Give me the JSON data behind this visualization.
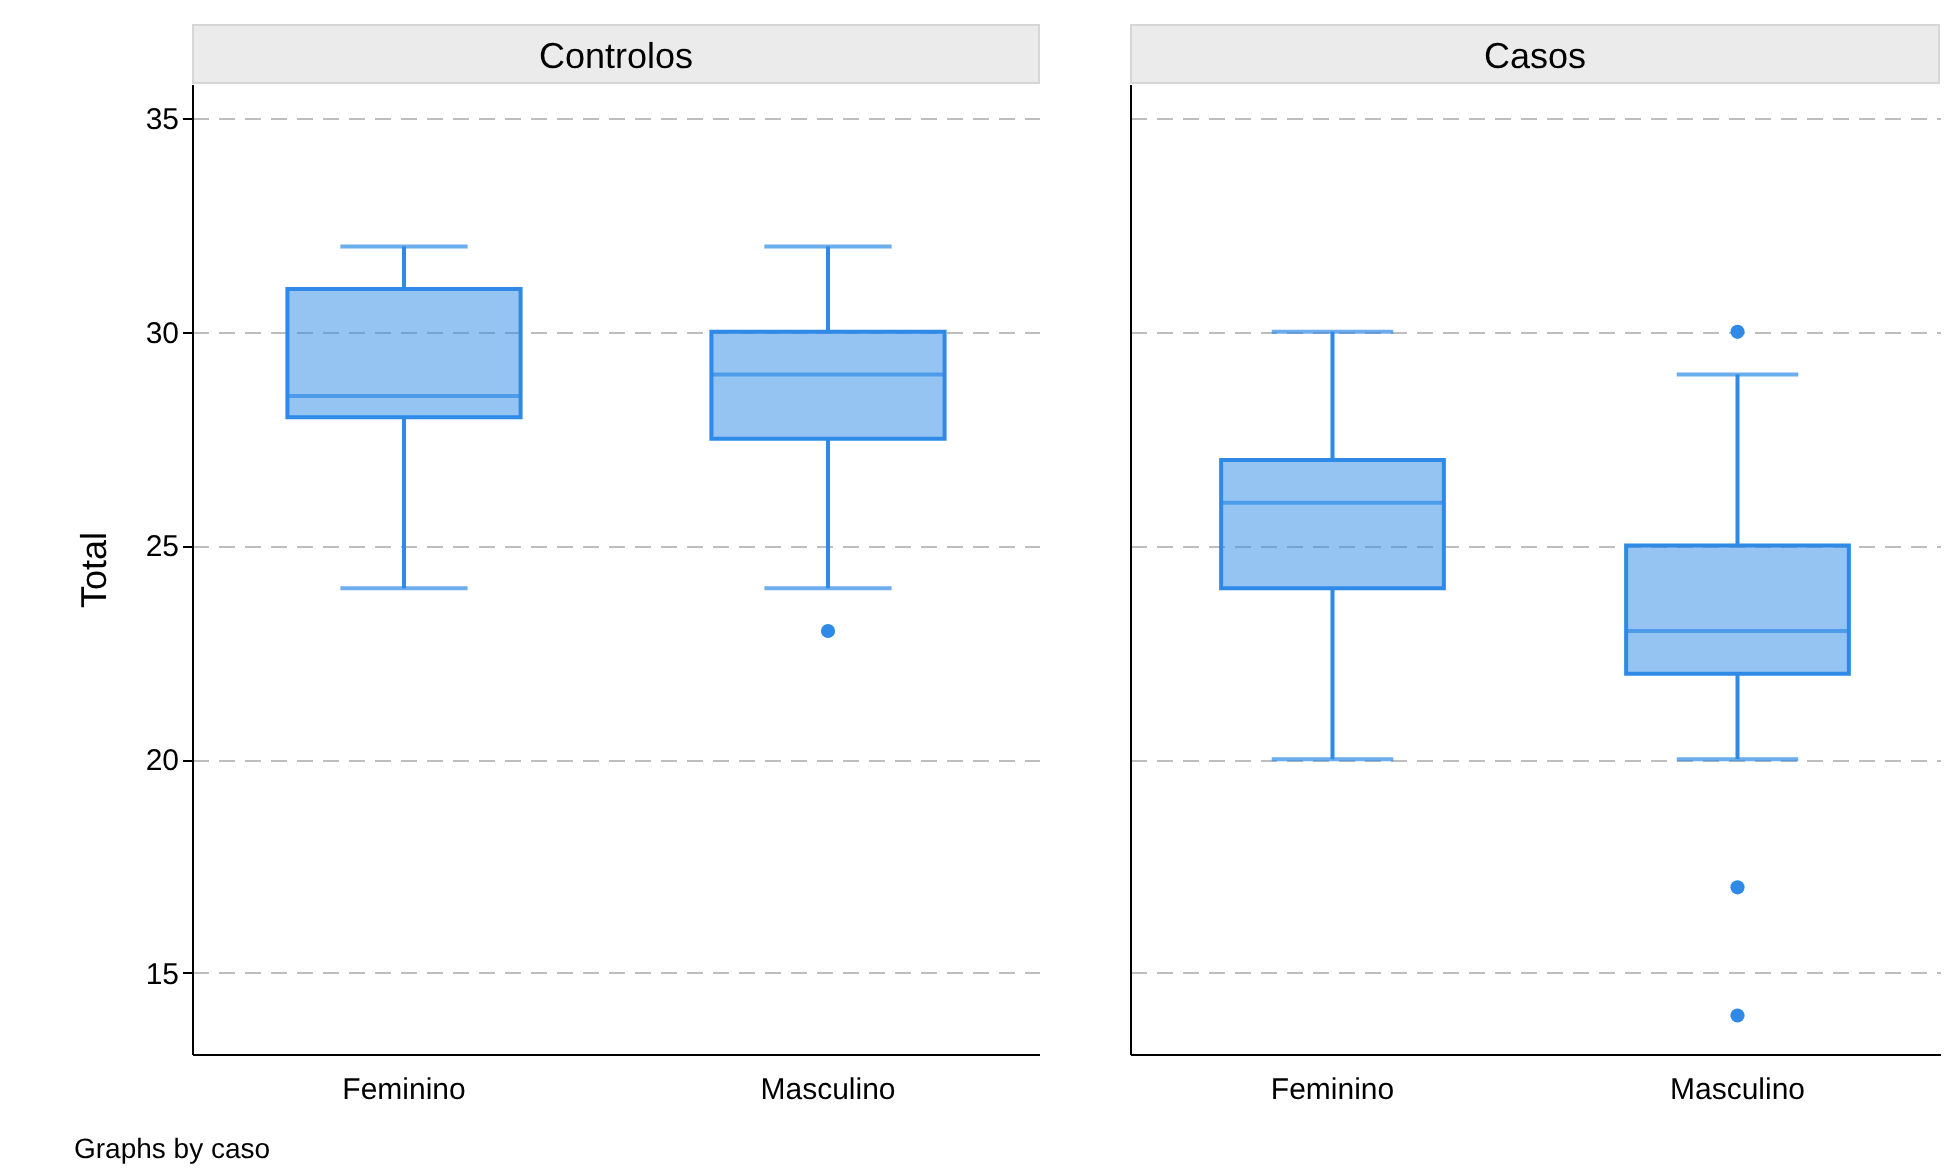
{
  "chart_data": [
    {
      "type": "box",
      "title": "Controlos",
      "ylabel": "Total",
      "categories": [
        "Feminino",
        "Masculino"
      ],
      "color": "#2e8ae6",
      "marker": "circle",
      "grid": "y",
      "ylim": [
        13.1,
        35.8
      ],
      "yticks": [
        15,
        20,
        25,
        30,
        35
      ],
      "boxes": [
        {
          "low": 24,
          "q1": 28,
          "median": 28.5,
          "q3": 31,
          "high": 32
        },
        {
          "low": 24,
          "q1": 27.5,
          "median": 29,
          "q3": 30,
          "high": 32,
          "outliers": [
            23
          ]
        }
      ],
      "annotations": [
        "Graphs by caso"
      ]
    },
    {
      "type": "box",
      "title": "Casos",
      "categories": [
        "Feminino",
        "Masculino"
      ],
      "color": "#2e8ae6",
      "marker": "circle",
      "grid": "y",
      "ylim": [
        13.1,
        35.8
      ],
      "yticks": [
        15,
        20,
        25,
        30,
        35
      ],
      "tick_labels": "x",
      "boxes": [
        {
          "low": 20,
          "q1": 24,
          "median": 26,
          "q3": 27,
          "high": 30
        },
        {
          "low": 20,
          "q1": 22,
          "median": 23,
          "q3": 25,
          "high": 29,
          "outliers": [
            30,
            17,
            14
          ]
        }
      ]
    }
  ]
}
